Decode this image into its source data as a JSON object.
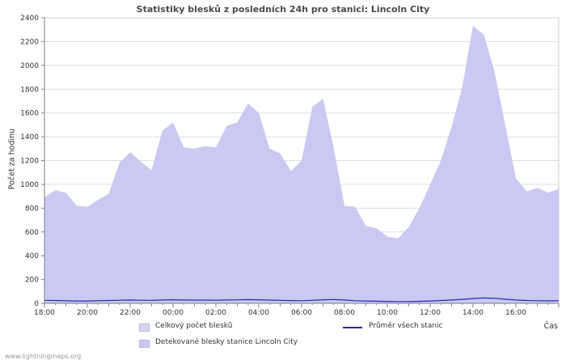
{
  "watermark": "www.lightningmaps.org",
  "chart_data": {
    "type": "area",
    "title": "Statistiky blesků z posledních 24h pro stanici: Lincoln City",
    "ylabel": "Počet za hodinu",
    "xlabel": "Čas",
    "ylim": [
      0,
      2400
    ],
    "y_tick_step": 200,
    "grid": true,
    "legend_position": "bottom",
    "x_start": "18:00",
    "x_step_hours": 0.5,
    "x_span_hours": 24,
    "x_tick_labels": [
      "18:00",
      "20:00",
      "22:00",
      "00:00",
      "02:00",
      "04:00",
      "06:00",
      "08:00",
      "10:00",
      "12:00",
      "14:00",
      "16:00"
    ],
    "x_tick_hours": [
      0,
      2,
      4,
      6,
      8,
      10,
      12,
      14,
      16,
      18,
      20,
      22
    ],
    "colors": {
      "grid": "#dddddd",
      "border": "#d0d0d0",
      "axis": "#808080",
      "area_total": "#d6d6f8",
      "area_detected": "#c9c9f2",
      "average_line": "#2727b0"
    },
    "series": [
      {
        "name": "Celkový počet blesků",
        "type": "area",
        "color": "#d6d6f8",
        "values": [
          890,
          950,
          930,
          820,
          810,
          870,
          920,
          1180,
          1270,
          1190,
          1120,
          1450,
          1520,
          1310,
          1300,
          1320,
          1310,
          1490,
          1520,
          1680,
          1600,
          1300,
          1260,
          1110,
          1200,
          1650,
          1720,
          1300,
          820,
          810,
          650,
          630,
          560,
          545,
          640,
          800,
          1000,
          1200,
          1480,
          1820,
          2330,
          2260,
          1950,
          1500,
          1050,
          940,
          970,
          930,
          960
        ]
      },
      {
        "name": "Detekované blesky stanice Lincoln City",
        "type": "area",
        "color": "#c9c9f2",
        "values": [
          890,
          950,
          930,
          820,
          810,
          870,
          920,
          1180,
          1270,
          1190,
          1120,
          1450,
          1520,
          1310,
          1300,
          1320,
          1310,
          1490,
          1520,
          1680,
          1600,
          1300,
          1260,
          1110,
          1200,
          1650,
          1720,
          1300,
          820,
          810,
          650,
          630,
          560,
          545,
          640,
          800,
          1000,
          1200,
          1480,
          1820,
          2330,
          2260,
          1950,
          1500,
          1050,
          940,
          970,
          930,
          960
        ]
      },
      {
        "name": "Průměr všech stanic",
        "type": "line",
        "color": "#2727b0",
        "values": [
          25,
          24,
          22,
          20,
          20,
          22,
          24,
          26,
          28,
          26,
          25,
          28,
          30,
          28,
          27,
          27,
          26,
          28,
          29,
          31,
          30,
          27,
          25,
          23,
          22,
          25,
          30,
          32,
          28,
          22,
          20,
          18,
          16,
          15,
          15,
          17,
          20,
          24,
          28,
          33,
          40,
          45,
          42,
          35,
          28,
          24,
          22,
          21,
          22
        ]
      }
    ]
  }
}
